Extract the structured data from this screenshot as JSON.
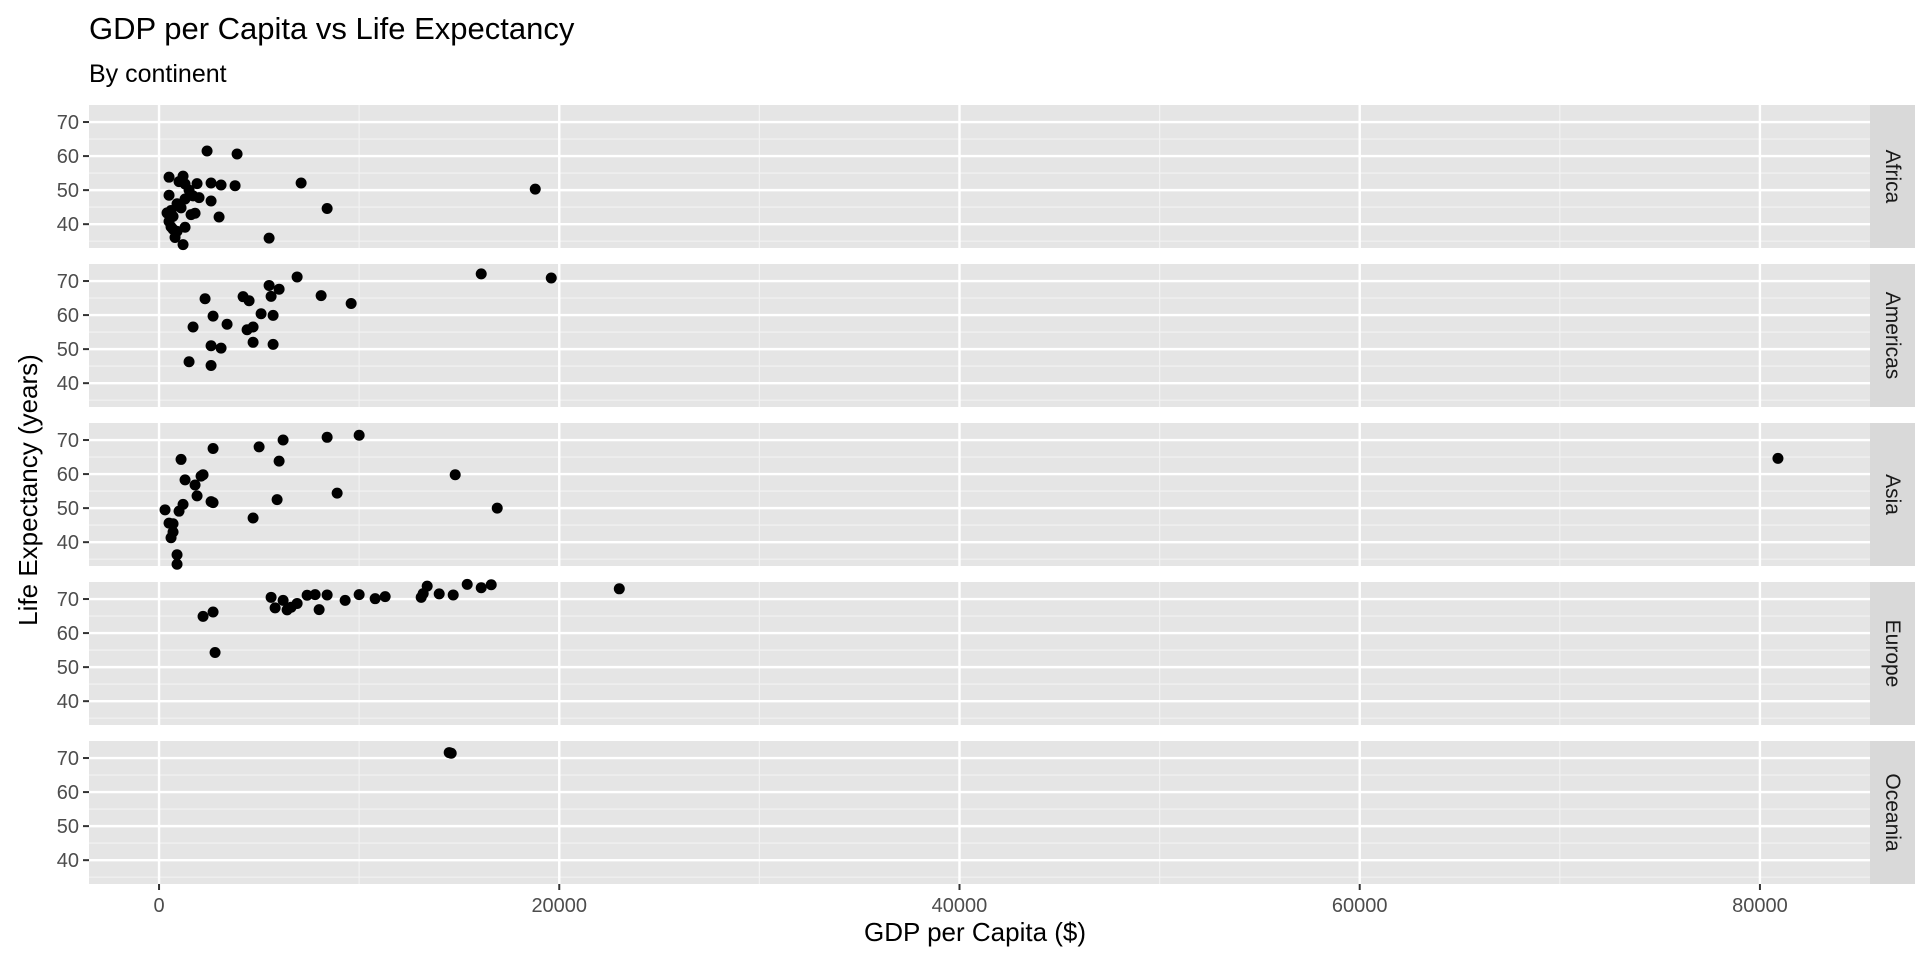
{
  "colors": {
    "panel_background": "#e5e5e5",
    "grid_major": "#ffffff",
    "grid_minor": "#f2f2f2",
    "strip_background": "#d9d9d9",
    "point": "#000000",
    "tick_text": "#4d4d4d"
  },
  "chart_data": {
    "type": "scatter",
    "title": "GDP per Capita vs Life Expectancy",
    "subtitle": "By continent",
    "xlabel": "GDP per Capita ($)",
    "ylabel": "Life Expectancy (years)",
    "xlim": [
      -3500,
      85500
    ],
    "ylim": [
      33,
      75
    ],
    "x_ticks": [
      0,
      20000,
      40000,
      60000,
      80000
    ],
    "x_tick_labels": [
      "0",
      "20000",
      "40000",
      "60000",
      "80000"
    ],
    "y_ticks": [
      40,
      50,
      60,
      70
    ],
    "y_tick_labels": [
      "40",
      "50",
      "60",
      "70"
    ],
    "grid": true,
    "facet": "rows",
    "series": [
      {
        "name": "Africa",
        "x": [
          2400,
          3900,
          1200,
          500,
          1000,
          1300,
          2600,
          3100,
          3800,
          7100,
          1900,
          1500,
          2000,
          1700,
          2600,
          8400,
          1300,
          900,
          1800,
          500,
          1000,
          600,
          1100,
          1600,
          3000,
          700,
          1300,
          400,
          500,
          600,
          700,
          900,
          800,
          1200,
          5500,
          18800
        ],
        "y": [
          61.5,
          60.6,
          54.1,
          53.8,
          52.5,
          51.8,
          52.1,
          51.5,
          51.3,
          52.1,
          51.9,
          50.0,
          47.8,
          48.3,
          46.8,
          44.6,
          47.4,
          46.0,
          43.2,
          48.5,
          45.7,
          44.0,
          44.8,
          42.8,
          42.1,
          42.3,
          39.1,
          43.3,
          40.8,
          39.2,
          38.5,
          37.9,
          36.1,
          34.0,
          35.9,
          50.3
        ]
      },
      {
        "name": "Americas",
        "x": [
          16100,
          19600,
          6900,
          5500,
          6000,
          5600,
          8100,
          2300,
          4200,
          4500,
          9600,
          2700,
          5100,
          5700,
          1700,
          3400,
          4700,
          4400,
          2600,
          5700,
          3100,
          1500,
          2600,
          4700
        ],
        "y": [
          72.1,
          70.9,
          71.2,
          68.7,
          67.6,
          65.5,
          65.7,
          64.8,
          65.4,
          64.2,
          63.4,
          59.7,
          60.4,
          59.9,
          56.5,
          57.3,
          56.5,
          55.7,
          51.0,
          51.4,
          50.3,
          46.3,
          45.2,
          52.0
        ],
        "x_note": ""
      },
      {
        "name": "Asia",
        "x": [
          80900,
          10000,
          8400,
          6200,
          5000,
          2700,
          1100,
          6000,
          2200,
          2100,
          1800,
          1300,
          14800,
          16900,
          8900,
          5900,
          1900,
          2700,
          2600,
          1200,
          1000,
          300,
          500,
          4700,
          700,
          700,
          600,
          900,
          900
        ],
        "y": [
          64.6,
          71.4,
          70.8,
          70.0,
          68.0,
          67.5,
          64.3,
          63.8,
          59.8,
          59.4,
          56.8,
          58.3,
          59.8,
          50.0,
          54.4,
          52.5,
          53.6,
          51.6,
          51.9,
          51.1,
          49.1,
          49.5,
          45.6,
          47.1,
          45.4,
          43.0,
          41.3,
          36.3,
          33.5
        ]
      },
      {
        "name": "Europe",
        "x": [
          23000,
          16600,
          15400,
          16100,
          13400,
          14700,
          13200,
          13100,
          14000,
          10000,
          11300,
          10800,
          8400,
          7800,
          7400,
          9300,
          6200,
          6900,
          6600,
          5600,
          5800,
          6400,
          8000,
          2700,
          2200,
          2800
        ],
        "y": [
          73.0,
          74.2,
          74.3,
          73.3,
          73.8,
          71.2,
          71.6,
          70.5,
          71.5,
          71.3,
          70.7,
          70.1,
          71.2,
          71.3,
          71.1,
          69.6,
          69.6,
          68.7,
          67.6,
          70.5,
          67.4,
          66.8,
          66.9,
          66.2,
          64.9,
          54.3
        ]
      },
      {
        "name": "Oceania",
        "x": [
          14500,
          14600
        ],
        "y": [
          71.6,
          71.4
        ]
      }
    ]
  }
}
